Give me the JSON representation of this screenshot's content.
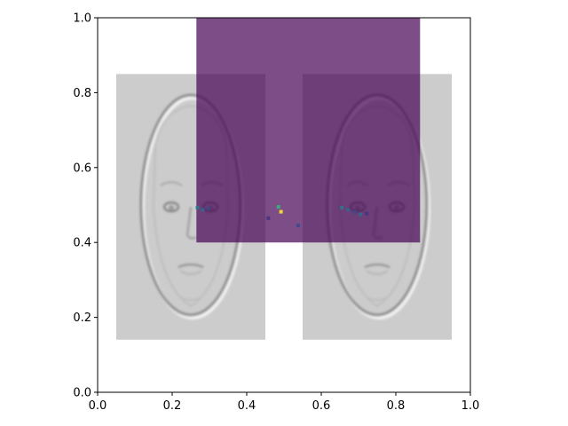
{
  "chart_data": {
    "type": "heatmap",
    "xlim": [
      0,
      1
    ],
    "ylim": [
      0,
      1
    ],
    "x_ticks": [
      "0.0",
      "0.2",
      "0.4",
      "0.6",
      "0.8",
      "1.0"
    ],
    "y_ticks": [
      "0.0",
      "0.2",
      "0.4",
      "0.6",
      "0.8",
      "1.0"
    ],
    "grid": false,
    "face_images": [
      {
        "extent": [
          0.05,
          0.45,
          0.14,
          0.85
        ]
      },
      {
        "extent": [
          0.55,
          0.95,
          0.14,
          0.85
        ]
      }
    ],
    "overlay": {
      "extent": [
        0.265,
        0.865,
        0.4,
        1.0
      ],
      "alpha": 0.7,
      "base_color": "#440154",
      "hot_cells": [
        {
          "x": 0.268,
          "y": 0.493,
          "color": "#2a788e"
        },
        {
          "x": 0.282,
          "y": 0.487,
          "color": "#31688e"
        },
        {
          "x": 0.298,
          "y": 0.491,
          "color": "#3e4a89"
        },
        {
          "x": 0.485,
          "y": 0.495,
          "color": "#35b779"
        },
        {
          "x": 0.492,
          "y": 0.482,
          "color": "#fde725"
        },
        {
          "x": 0.458,
          "y": 0.465,
          "color": "#46337e"
        },
        {
          "x": 0.538,
          "y": 0.445,
          "color": "#3e4a89"
        },
        {
          "x": 0.655,
          "y": 0.493,
          "color": "#2a788e"
        },
        {
          "x": 0.672,
          "y": 0.487,
          "color": "#31688e"
        },
        {
          "x": 0.69,
          "y": 0.481,
          "color": "#3e4a89"
        },
        {
          "x": 0.705,
          "y": 0.475,
          "color": "#31688e"
        },
        {
          "x": 0.722,
          "y": 0.477,
          "color": "#46337e"
        }
      ]
    }
  }
}
